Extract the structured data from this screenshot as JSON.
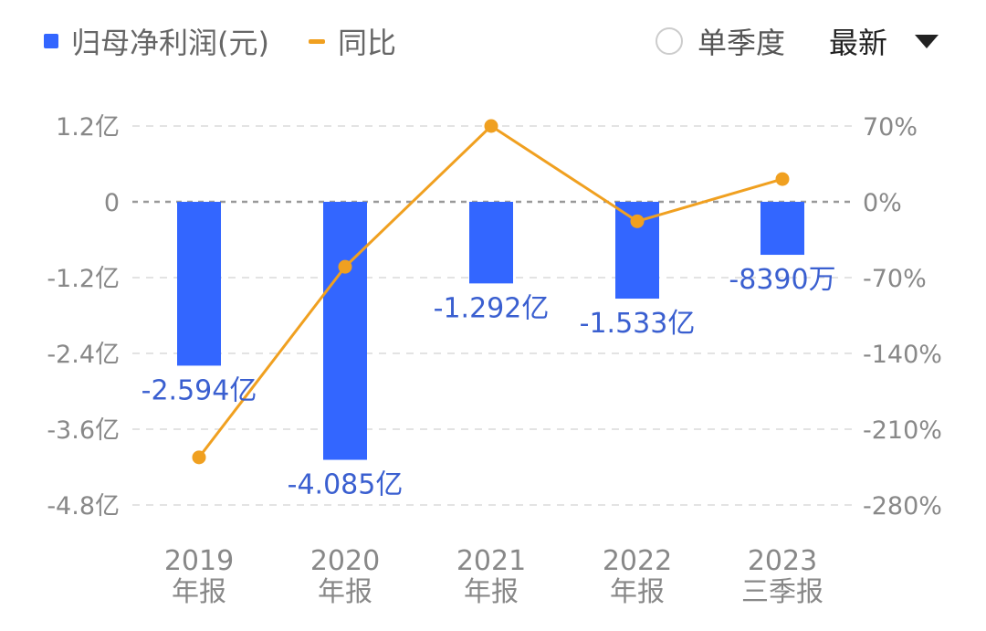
{
  "legend": {
    "bar_label": "归母净利润(元)",
    "line_label": "同比"
  },
  "controls": {
    "quarter_toggle_label": "单季度",
    "period_select_label": "最新"
  },
  "colors": {
    "bar": "#3366ff",
    "line": "#f0a020",
    "data_label": "#3a5fd0",
    "axis_text": "#888888"
  },
  "chart_data": {
    "type": "bar",
    "categories": [
      [
        "2019",
        "年报"
      ],
      [
        "2020",
        "年报"
      ],
      [
        "2021",
        "年报"
      ],
      [
        "2022",
        "年报"
      ],
      [
        "2023",
        "三季报"
      ]
    ],
    "series": [
      {
        "name": "归母净利润(元)",
        "type": "bar",
        "axis": "left",
        "values": [
          -2.594,
          -4.085,
          -1.292,
          -1.533,
          -0.839
        ],
        "labels": [
          "-2.594亿",
          "-4.085亿",
          "-1.292亿",
          "-1.533亿",
          "-8390万"
        ]
      },
      {
        "name": "同比",
        "type": "line",
        "axis": "right",
        "values": [
          -236,
          -60,
          70,
          -18,
          21
        ]
      }
    ],
    "y_left": {
      "ticks": [
        1.2,
        0,
        -1.2,
        -2.4,
        -3.6,
        -4.8
      ],
      "tick_labels": [
        "1.2亿",
        "0",
        "-1.2亿",
        "-2.4亿",
        "-3.6亿",
        "-4.8亿"
      ],
      "range": [
        -4.8,
        1.2
      ],
      "unit": "亿元"
    },
    "y_right": {
      "ticks": [
        70,
        0,
        -70,
        -140,
        -210,
        -280
      ],
      "tick_labels": [
        "70%",
        "0%",
        "-70%",
        "-140%",
        "-210%",
        "-280%"
      ],
      "range": [
        -280,
        70
      ],
      "unit": "%"
    },
    "grid": true,
    "legend_position": "top-left"
  }
}
